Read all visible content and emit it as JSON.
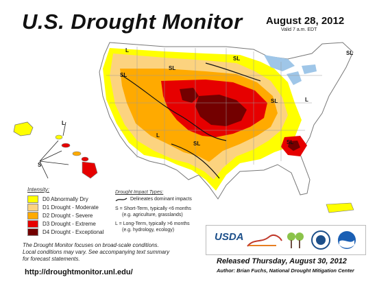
{
  "header": {
    "title": "U.S. Drought Monitor",
    "date": "August 28, 2012",
    "valid": "Valid 7 a.m. EDT"
  },
  "legend": {
    "title": "Intensity:",
    "items": [
      {
        "label": "D0 Abnormally Dry",
        "color": "#ffff00"
      },
      {
        "label": "D1 Drought - Moderate",
        "color": "#fcd37f"
      },
      {
        "label": "D2 Drought - Severe",
        "color": "#ffaa00"
      },
      {
        "label": "D3 Drought - Extreme",
        "color": "#e60000"
      },
      {
        "label": "D4 Drought - Exceptional",
        "color": "#730000"
      }
    ]
  },
  "impact": {
    "title": "Drought Impact Types:",
    "line": "Delineates dominant impacts",
    "short": "S = Short-Term, typically <6 months",
    "short_eg": "(e.g. agriculture, grasslands)",
    "long": "L = Long-Term, typically >6 months",
    "long_eg": "(e.g. hydrology, ecology)"
  },
  "map_labels": {
    "sl": "SL",
    "s": "S",
    "l": "L"
  },
  "note": {
    "line1": "The Drought Monitor focuses on broad-scale conditions.",
    "line2": "Local conditions may vary. See accompanying text summary",
    "line3": "for forecast statements."
  },
  "footer": {
    "url": "http://droughtmonitor.unl.edu/",
    "released": "Released Thursday, August 30, 2012",
    "author": "Author: Brian Fuchs, National Drought Mitigation Center"
  },
  "logos": {
    "usda": "USDA"
  },
  "colors": {
    "water": "#9fc6e8",
    "land": "#ffffff",
    "border": "#9a9a9a"
  }
}
